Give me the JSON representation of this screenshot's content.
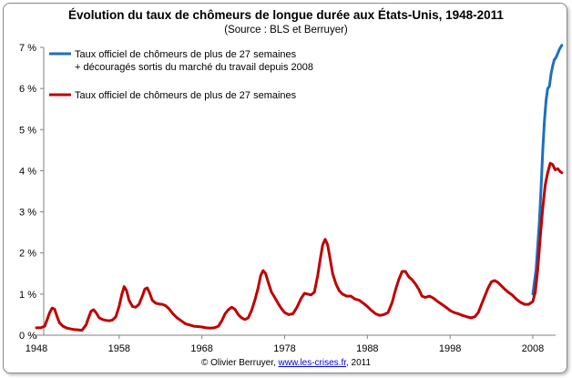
{
  "chart_data": {
    "type": "line",
    "title": "Évolution du taux de chômeurs de longue durée aux États-Unis, 1948-2011",
    "subtitle": "(Source : BLS et Berruyer)",
    "xlabel": "",
    "ylabel": "",
    "xlim": [
      1948,
      2012
    ],
    "ylim": [
      0,
      7
    ],
    "x_ticks": [
      "1948",
      "1958",
      "1968",
      "1978",
      "1988",
      "1998",
      "2008"
    ],
    "y_ticks": [
      "0 %",
      "1 %",
      "2 %",
      "3 %",
      "4 %",
      "5 %",
      "6 %",
      "7 %"
    ],
    "grid": false,
    "legend_position": "top-left",
    "series": [
      {
        "name": "Taux officiel de chômeurs de plus de 27 semaines",
        "name_line2": "+ découragés sortis du marché du travail depuis 2008",
        "color": "#1f6fbf",
        "x": [
          2008.0,
          2008.4,
          2008.8,
          2009.0,
          2009.2,
          2009.4,
          2009.6,
          2009.8,
          2010.0,
          2010.2,
          2010.4,
          2010.6,
          2010.8,
          2011.0,
          2011.2,
          2011.5
        ],
        "values": [
          1.0,
          1.6,
          2.8,
          3.6,
          4.5,
          5.2,
          5.7,
          6.0,
          6.05,
          6.35,
          6.55,
          6.7,
          6.75,
          6.85,
          6.95,
          7.05
        ]
      },
      {
        "name": "Taux officiel de chômeurs de plus de 27 semaines",
        "color": "#c00000",
        "x": [
          1948.0,
          1948.5,
          1949.0,
          1949.3,
          1949.6,
          1949.9,
          1950.2,
          1950.5,
          1950.8,
          1951.2,
          1951.6,
          1952.0,
          1952.5,
          1953.0,
          1953.5,
          1954.0,
          1954.3,
          1954.6,
          1954.9,
          1955.2,
          1955.6,
          1956.0,
          1956.4,
          1956.8,
          1957.2,
          1957.6,
          1958.0,
          1958.3,
          1958.6,
          1958.9,
          1959.2,
          1959.6,
          1960.0,
          1960.4,
          1960.8,
          1961.1,
          1961.4,
          1961.7,
          1962.0,
          1962.4,
          1962.8,
          1963.2,
          1963.6,
          1964.0,
          1964.5,
          1965.0,
          1965.5,
          1966.0,
          1966.5,
          1967.0,
          1967.5,
          1968.0,
          1968.5,
          1969.0,
          1969.5,
          1970.0,
          1970.4,
          1970.8,
          1971.2,
          1971.6,
          1972.0,
          1972.4,
          1972.8,
          1973.2,
          1973.6,
          1974.0,
          1974.4,
          1974.8,
          1975.1,
          1975.4,
          1975.7,
          1976.0,
          1976.4,
          1976.8,
          1977.2,
          1977.6,
          1978.0,
          1978.5,
          1979.0,
          1979.5,
          1980.0,
          1980.4,
          1980.8,
          1981.2,
          1981.6,
          1982.0,
          1982.3,
          1982.6,
          1982.9,
          1983.2,
          1983.5,
          1983.8,
          1984.2,
          1984.6,
          1985.0,
          1985.5,
          1986.0,
          1986.5,
          1987.0,
          1987.5,
          1988.0,
          1988.5,
          1989.0,
          1989.5,
          1990.0,
          1990.5,
          1991.0,
          1991.4,
          1991.8,
          1992.2,
          1992.6,
          1993.0,
          1993.4,
          1993.8,
          1994.2,
          1994.6,
          1995.0,
          1995.5,
          1996.0,
          1996.5,
          1997.0,
          1997.5,
          1998.0,
          1998.5,
          1999.0,
          1999.5,
          2000.0,
          2000.5,
          2001.0,
          2001.4,
          2001.8,
          2002.2,
          2002.6,
          2003.0,
          2003.4,
          2003.8,
          2004.2,
          2004.6,
          2005.0,
          2005.5,
          2006.0,
          2006.5,
          2007.0,
          2007.5,
          2008.0,
          2008.3,
          2008.6,
          2008.9,
          2009.2,
          2009.5,
          2009.8,
          2010.1,
          2010.4,
          2010.7,
          2011.0,
          2011.3,
          2011.5
        ],
        "values": [
          0.18,
          0.18,
          0.22,
          0.38,
          0.55,
          0.66,
          0.63,
          0.45,
          0.3,
          0.22,
          0.18,
          0.16,
          0.14,
          0.13,
          0.12,
          0.25,
          0.42,
          0.58,
          0.62,
          0.55,
          0.42,
          0.38,
          0.36,
          0.35,
          0.37,
          0.45,
          0.7,
          0.98,
          1.18,
          1.08,
          0.85,
          0.7,
          0.68,
          0.75,
          0.95,
          1.12,
          1.15,
          1.02,
          0.85,
          0.78,
          0.76,
          0.75,
          0.72,
          0.65,
          0.52,
          0.42,
          0.35,
          0.28,
          0.25,
          0.22,
          0.21,
          0.2,
          0.18,
          0.17,
          0.18,
          0.22,
          0.35,
          0.52,
          0.62,
          0.68,
          0.63,
          0.5,
          0.42,
          0.38,
          0.42,
          0.6,
          0.85,
          1.15,
          1.45,
          1.57,
          1.5,
          1.3,
          1.05,
          0.92,
          0.78,
          0.65,
          0.55,
          0.5,
          0.52,
          0.68,
          0.9,
          1.02,
          1.0,
          0.98,
          1.05,
          1.45,
          1.85,
          2.2,
          2.33,
          2.2,
          1.85,
          1.5,
          1.25,
          1.08,
          1.0,
          0.95,
          0.95,
          0.88,
          0.85,
          0.78,
          0.7,
          0.6,
          0.52,
          0.48,
          0.5,
          0.55,
          0.8,
          1.1,
          1.35,
          1.55,
          1.55,
          1.42,
          1.35,
          1.25,
          1.12,
          0.95,
          0.92,
          0.95,
          0.9,
          0.82,
          0.75,
          0.68,
          0.6,
          0.55,
          0.52,
          0.48,
          0.45,
          0.42,
          0.45,
          0.55,
          0.75,
          0.95,
          1.15,
          1.3,
          1.33,
          1.28,
          1.2,
          1.12,
          1.05,
          0.98,
          0.88,
          0.8,
          0.75,
          0.75,
          0.82,
          1.05,
          1.6,
          2.4,
          3.1,
          3.65,
          3.95,
          4.18,
          4.15,
          4.02,
          4.05,
          3.98,
          3.95
        ]
      }
    ]
  },
  "credit": {
    "prefix": "© Olivier Berruyer,  ",
    "link_text": "www.les-crises.fr",
    "suffix": ",  2011"
  }
}
